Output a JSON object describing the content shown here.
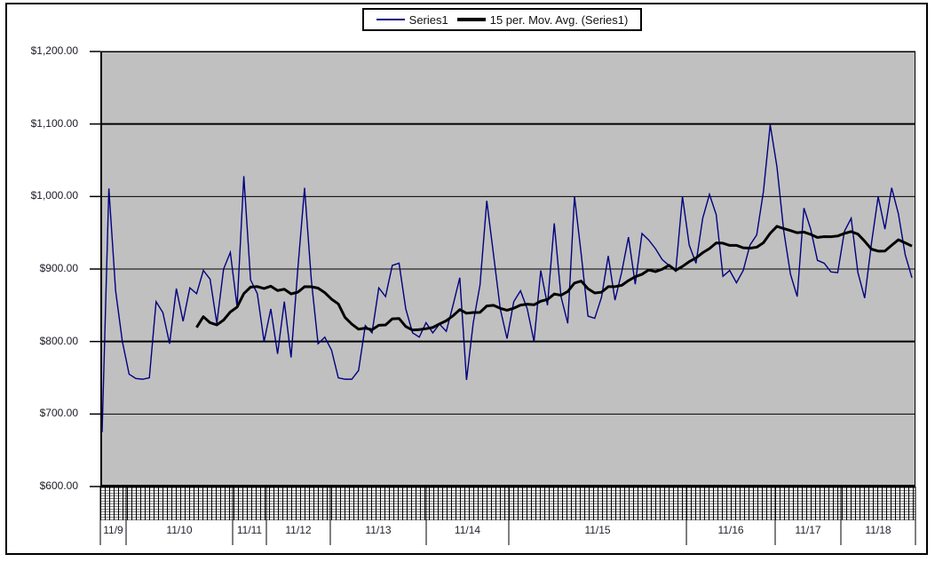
{
  "legend": {
    "items": [
      {
        "label": "Series1",
        "color": "#000080"
      },
      {
        "label": "15 per. Mov. Avg. (Series1)",
        "color": "#000000"
      }
    ]
  },
  "colors": {
    "series1": "#000080",
    "moving_average": "#000000",
    "plot_background": "#c0c0c0",
    "gridline": "#000000",
    "page_background": "#ffffff"
  },
  "chart_data": {
    "type": "line",
    "title": "",
    "xlabel": "",
    "ylabel": "",
    "ylim": [
      600,
      1200
    ],
    "grid": "horizontal-only",
    "legend_position": "top-center",
    "y_tick_labels": [
      "$1,200.00",
      "$1,100.00",
      "$1,000.00",
      "$900.00",
      "$800.00",
      "$700.00",
      "$600.00"
    ],
    "y_tick_values": [
      1200,
      1100,
      1000,
      900,
      800,
      700,
      600
    ],
    "emphasized_gridline_values": [
      1100,
      800,
      600
    ],
    "x_groups": {
      "labels": [
        "11/9",
        "11/10",
        "11/11",
        "11/12",
        "11/13",
        "11/14",
        "11/15",
        "11/16",
        "11/17",
        "11/18"
      ],
      "boundaries": [
        0,
        0.0316,
        0.1623,
        0.2037,
        0.2821,
        0.3998,
        0.5011,
        0.719,
        0.8279,
        0.9085,
        1.0
      ],
      "minor_ticks": "dense illegible rotated time labels"
    },
    "series": [
      {
        "name": "Series1",
        "color": "#000080",
        "values": [
          675,
          1011,
          870,
          800,
          755,
          749,
          748,
          750,
          855,
          840,
          797,
          873,
          828,
          874,
          866,
          898,
          886,
          825,
          900,
          923,
          848,
          1028,
          885,
          866,
          800,
          845,
          783,
          855,
          778,
          900,
          1012,
          885,
          797,
          806,
          788,
          750,
          748,
          748,
          760,
          822,
          812,
          874,
          862,
          905,
          908,
          845,
          812,
          806,
          826,
          812,
          824,
          814,
          850,
          888,
          747,
          826,
          878,
          994,
          920,
          845,
          804,
          855,
          870,
          845,
          800,
          898,
          850,
          963,
          862,
          825,
          1000,
          920,
          835,
          832,
          861,
          918,
          857,
          896,
          944,
          879,
          949,
          940,
          928,
          913,
          905,
          897,
          1000,
          933,
          908,
          970,
          1003,
          975,
          890,
          898,
          881,
          898,
          933,
          947,
          1007,
          1099,
          1041,
          953,
          893,
          862,
          984,
          955,
          912,
          908,
          896,
          895,
          952,
          970,
          895,
          860,
          935,
          1000,
          955,
          1012,
          976,
          920,
          888
        ]
      },
      {
        "name": "15 per. Mov. Avg. (Series1)",
        "color": "#000000",
        "derived_from": "Series1",
        "window": 15
      }
    ]
  }
}
